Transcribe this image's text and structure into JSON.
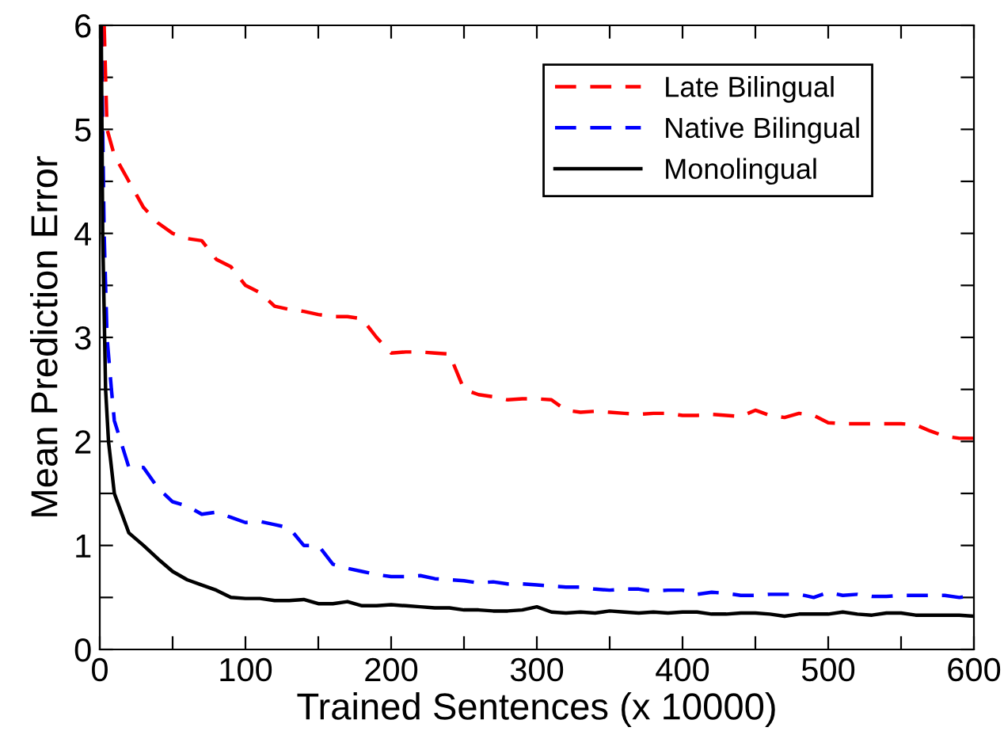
{
  "chart_data": {
    "type": "line",
    "xlabel": "Trained Sentences (x 10000)",
    "ylabel": "Mean Prediction Error",
    "xlim": [
      0,
      600
    ],
    "ylim": [
      0,
      6
    ],
    "xticks": [
      0,
      {
        "value": 50,
        "label": null
      },
      100,
      {
        "value": 150,
        "label": null
      },
      200,
      {
        "value": 250,
        "label": null
      },
      300,
      {
        "value": 350,
        "label": null
      },
      400,
      {
        "value": 450,
        "label": null
      },
      500,
      {
        "value": 550,
        "label": null
      },
      600
    ],
    "yticks": [
      0,
      {
        "value": 0.5,
        "label": null
      },
      1,
      {
        "value": 1.5,
        "label": null
      },
      2,
      {
        "value": 2.5,
        "label": null
      },
      3,
      {
        "value": 3.5,
        "label": null
      },
      4,
      {
        "value": 4.5,
        "label": null
      },
      5,
      {
        "value": 5.5,
        "label": null
      },
      6
    ],
    "grid": false,
    "legend": "top right",
    "marker": "none",
    "series": [
      {
        "name": "Late Bilingual",
        "color": "#ff0000",
        "line_style": "dashed",
        "x": [
          3,
          5,
          10,
          20,
          30,
          40,
          50,
          60,
          70,
          80,
          90,
          100,
          110,
          120,
          130,
          140,
          150,
          160,
          170,
          180,
          190,
          200,
          210,
          220,
          230,
          240,
          250,
          260,
          270,
          280,
          290,
          300,
          310,
          320,
          330,
          340,
          350,
          360,
          370,
          380,
          390,
          400,
          410,
          420,
          430,
          440,
          450,
          460,
          470,
          480,
          490,
          500,
          510,
          520,
          530,
          540,
          550,
          560,
          570,
          580,
          590,
          600
        ],
        "values": [
          6.0,
          5.0,
          4.75,
          4.5,
          4.25,
          4.1,
          4.0,
          3.95,
          3.93,
          3.75,
          3.68,
          3.5,
          3.43,
          3.3,
          3.27,
          3.25,
          3.22,
          3.2,
          3.2,
          3.18,
          3.0,
          2.85,
          2.86,
          2.86,
          2.85,
          2.84,
          2.5,
          2.45,
          2.43,
          2.4,
          2.41,
          2.41,
          2.4,
          2.3,
          2.28,
          2.29,
          2.28,
          2.27,
          2.26,
          2.27,
          2.27,
          2.25,
          2.25,
          2.26,
          2.25,
          2.24,
          2.3,
          2.25,
          2.23,
          2.27,
          2.25,
          2.18,
          2.17,
          2.17,
          2.17,
          2.17,
          2.17,
          2.16,
          2.1,
          2.05,
          2.03,
          2.03
        ]
      },
      {
        "name": "Native Bilingual",
        "color": "#0000ff",
        "line_style": "dashed",
        "x": [
          1,
          3,
          5,
          8,
          10,
          20,
          30,
          40,
          50,
          60,
          70,
          80,
          90,
          100,
          110,
          120,
          130,
          140,
          150,
          160,
          170,
          180,
          190,
          200,
          210,
          220,
          230,
          240,
          250,
          260,
          270,
          280,
          290,
          300,
          310,
          320,
          330,
          340,
          350,
          360,
          370,
          380,
          390,
          400,
          410,
          420,
          430,
          440,
          450,
          460,
          470,
          480,
          490,
          500,
          510,
          520,
          530,
          540,
          550,
          560,
          570,
          580,
          590,
          600
        ],
        "values": [
          6.0,
          4.0,
          3.0,
          2.5,
          2.2,
          1.75,
          1.75,
          1.55,
          1.42,
          1.38,
          1.3,
          1.32,
          1.27,
          1.22,
          1.23,
          1.2,
          1.17,
          1.0,
          1.0,
          0.82,
          0.78,
          0.75,
          0.72,
          0.7,
          0.7,
          0.71,
          0.68,
          0.67,
          0.66,
          0.64,
          0.65,
          0.63,
          0.63,
          0.62,
          0.61,
          0.6,
          0.6,
          0.58,
          0.57,
          0.58,
          0.58,
          0.56,
          0.57,
          0.57,
          0.53,
          0.55,
          0.54,
          0.52,
          0.52,
          0.53,
          0.53,
          0.53,
          0.5,
          0.55,
          0.52,
          0.53,
          0.51,
          0.51,
          0.52,
          0.52,
          0.52,
          0.52,
          0.5,
          0.52
        ]
      },
      {
        "name": "Monolingual",
        "color": "#000000",
        "line_style": "solid",
        "x": [
          1,
          2,
          4,
          6,
          10,
          20,
          30,
          40,
          50,
          60,
          70,
          80,
          90,
          100,
          110,
          120,
          130,
          140,
          150,
          160,
          170,
          180,
          190,
          200,
          210,
          220,
          230,
          240,
          250,
          260,
          270,
          280,
          290,
          300,
          310,
          320,
          330,
          340,
          350,
          360,
          370,
          380,
          390,
          400,
          410,
          420,
          430,
          440,
          450,
          460,
          470,
          480,
          490,
          500,
          510,
          520,
          530,
          540,
          550,
          560,
          570,
          580,
          590,
          600
        ],
        "values": [
          6.0,
          4.0,
          2.5,
          2.0,
          1.5,
          1.12,
          1.0,
          0.87,
          0.75,
          0.67,
          0.62,
          0.57,
          0.5,
          0.49,
          0.49,
          0.47,
          0.47,
          0.48,
          0.44,
          0.44,
          0.46,
          0.42,
          0.42,
          0.43,
          0.42,
          0.41,
          0.4,
          0.4,
          0.38,
          0.38,
          0.37,
          0.37,
          0.38,
          0.41,
          0.36,
          0.35,
          0.36,
          0.35,
          0.37,
          0.36,
          0.35,
          0.36,
          0.35,
          0.36,
          0.36,
          0.34,
          0.34,
          0.35,
          0.35,
          0.34,
          0.32,
          0.34,
          0.34,
          0.34,
          0.36,
          0.34,
          0.33,
          0.35,
          0.35,
          0.33,
          0.33,
          0.33,
          0.33,
          0.32
        ]
      }
    ]
  }
}
